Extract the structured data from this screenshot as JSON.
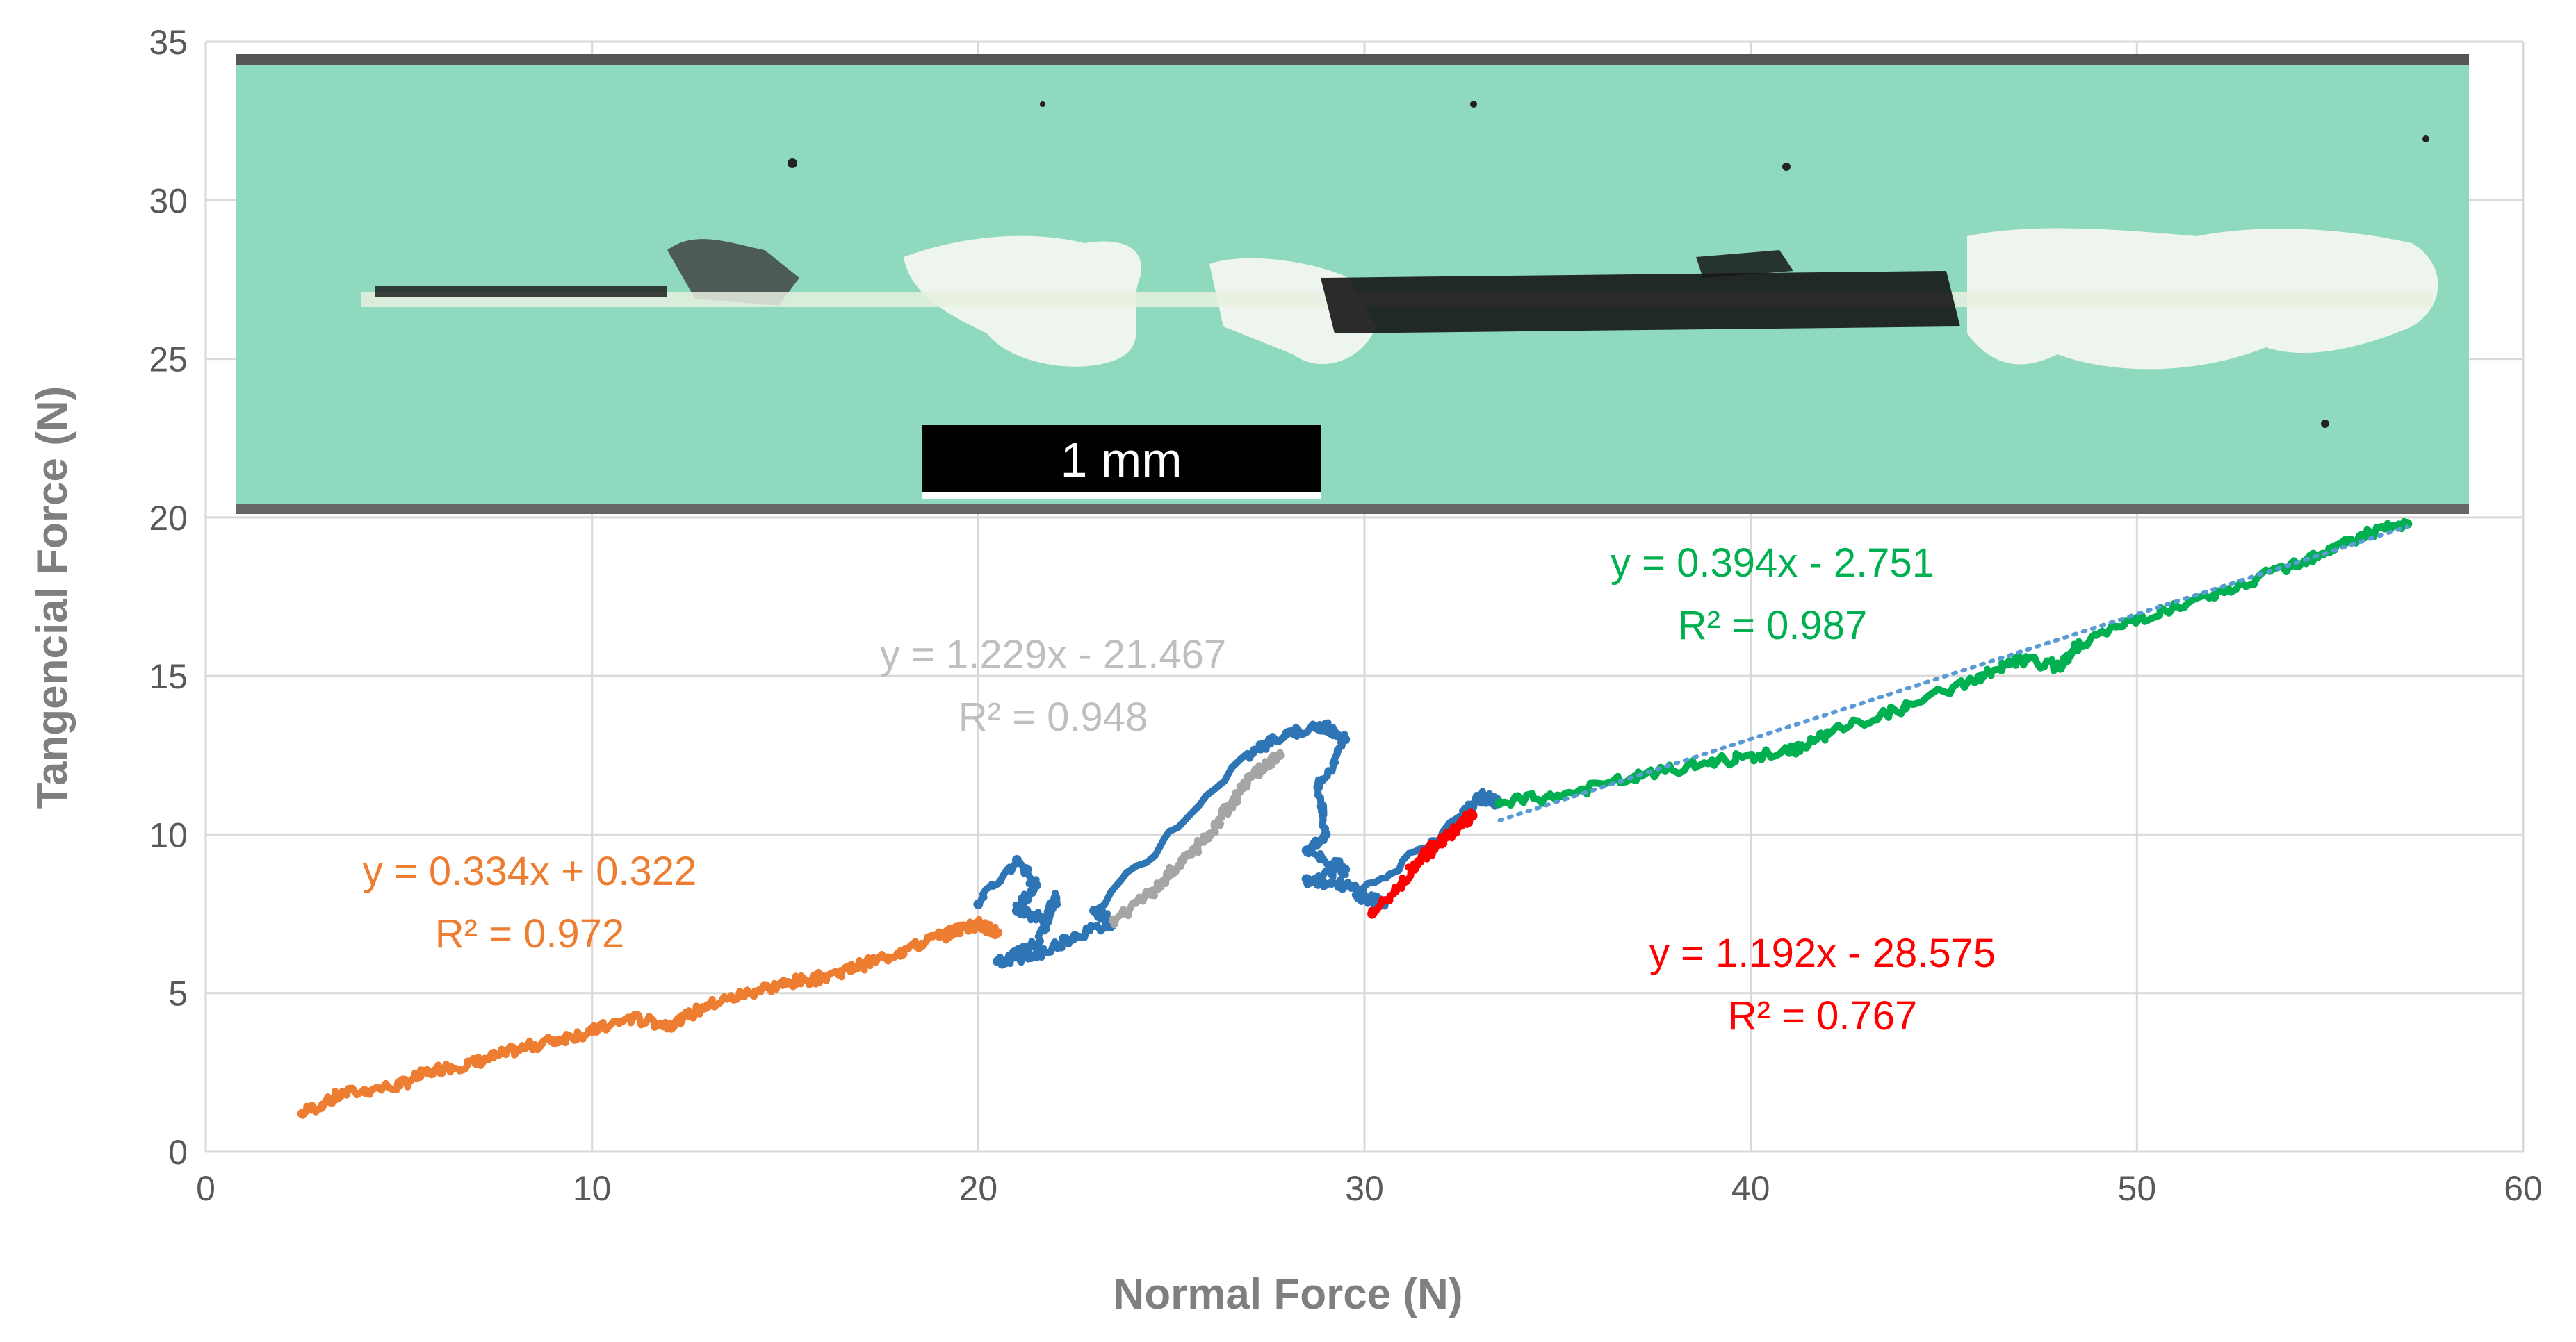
{
  "chart_data": {
    "type": "scatter",
    "xlabel": "Normal Force (N)",
    "ylabel": "Tangencial Force (N)",
    "xlim": [
      0,
      60
    ],
    "ylim": [
      0,
      35
    ],
    "xticks": [
      0,
      10,
      20,
      30,
      40,
      50,
      60
    ],
    "yticks": [
      0,
      5,
      10,
      15,
      20,
      25,
      30,
      35
    ],
    "grid": true,
    "series": [
      {
        "name": "orange",
        "color": "#ED7D31",
        "points": [
          [
            2.5,
            1.2
          ],
          [
            3.5,
            1.8
          ],
          [
            5,
            2.1
          ],
          [
            6,
            2.6
          ],
          [
            7,
            2.8
          ],
          [
            8,
            3.2
          ],
          [
            9,
            3.5
          ],
          [
            10,
            3.8
          ],
          [
            11,
            4.2
          ],
          [
            12,
            4.0
          ],
          [
            13,
            4.6
          ],
          [
            14,
            5.0
          ],
          [
            15,
            5.3
          ],
          [
            16,
            5.5
          ],
          [
            17,
            5.9
          ],
          [
            18,
            6.3
          ],
          [
            19,
            6.8
          ],
          [
            20,
            7.2
          ],
          [
            20.5,
            6.9
          ]
        ]
      },
      {
        "name": "blue",
        "color": "#2E75B6",
        "points": [
          [
            20,
            7.8
          ],
          [
            21,
            9.2
          ],
          [
            21.5,
            8.4
          ],
          [
            21,
            7.6
          ],
          [
            21.8,
            7.3
          ],
          [
            22,
            8.0
          ],
          [
            21.5,
            6.5
          ],
          [
            20.5,
            6.0
          ],
          [
            21.5,
            6.2
          ],
          [
            22.5,
            6.8
          ],
          [
            23.5,
            7.2
          ],
          [
            23,
            7.6
          ],
          [
            27,
            12.5
          ],
          [
            28,
            13.2
          ],
          [
            29,
            13.4
          ],
          [
            29.5,
            13.0
          ],
          [
            28.8,
            11.5
          ],
          [
            29,
            10.0
          ],
          [
            28.5,
            9.5
          ],
          [
            29.5,
            8.9
          ],
          [
            28.5,
            8.6
          ],
          [
            29.5,
            8.4
          ],
          [
            30.5,
            7.8
          ],
          [
            29.8,
            8.1
          ],
          [
            32.5,
            10.5
          ],
          [
            33,
            11.2
          ],
          [
            33.5,
            11.0
          ]
        ]
      },
      {
        "name": "gray",
        "color": "#A5A5A5",
        "points": [
          [
            23.5,
            7.3
          ],
          [
            24.5,
            8.2
          ],
          [
            25,
            8.8
          ],
          [
            25.5,
            9.4
          ],
          [
            26,
            10.0
          ],
          [
            26.5,
            10.9
          ],
          [
            27,
            11.8
          ],
          [
            27.8,
            12.5
          ]
        ]
      },
      {
        "name": "red",
        "color": "#FF0000",
        "points": [
          [
            30.2,
            7.5
          ],
          [
            31,
            8.5
          ],
          [
            31.5,
            9.3
          ],
          [
            32,
            9.8
          ],
          [
            32.5,
            10.3
          ],
          [
            32.8,
            10.6
          ]
        ]
      },
      {
        "name": "green",
        "color": "#00B050",
        "points": [
          [
            33.5,
            11.0
          ],
          [
            35,
            11.2
          ],
          [
            37,
            11.8
          ],
          [
            39,
            12.3
          ],
          [
            41,
            12.6
          ],
          [
            42,
            13.2
          ],
          [
            44,
            14.0
          ],
          [
            46,
            15.0
          ],
          [
            47,
            15.5
          ],
          [
            48,
            15.3
          ],
          [
            48.5,
            16.0
          ],
          [
            50,
            16.8
          ],
          [
            52,
            17.5
          ],
          [
            54,
            18.5
          ],
          [
            55,
            19.0
          ],
          [
            56,
            19.5
          ],
          [
            57,
            19.8
          ]
        ]
      }
    ],
    "trendlines": [
      {
        "name": "orange",
        "slope": 0.334,
        "intercept": 0.322,
        "x_range": [
          2.5,
          20.5
        ]
      },
      {
        "name": "gray",
        "slope": 1.229,
        "intercept": -21.467,
        "x_range": [
          23.5,
          27.8
        ]
      },
      {
        "name": "red",
        "slope": 1.192,
        "intercept": -28.575,
        "x_range": [
          30.2,
          32.8
        ]
      },
      {
        "name": "green",
        "slope": 0.394,
        "intercept": -2.751,
        "x_range": [
          33.5,
          57
        ]
      }
    ],
    "annotations": [
      {
        "name": "orange",
        "equation": "y = 0.334x + 0.322",
        "r2": "R² = 0.972",
        "color": "#ED7D31"
      },
      {
        "name": "gray",
        "equation": "y = 1.229x - 21.467",
        "r2": "R² = 0.948",
        "color": "#BFBFBF"
      },
      {
        "name": "red",
        "equation": "y = 1.192x - 28.575",
        "r2": "R² = 0.767",
        "color": "#FF0000"
      },
      {
        "name": "green",
        "equation": "y = 0.394x - 2.751",
        "r2": "R² = 0.987",
        "color": "#00B050"
      }
    ]
  },
  "inset": {
    "scale_bar_label": "1 mm",
    "background_color": "#8FD9BE"
  }
}
